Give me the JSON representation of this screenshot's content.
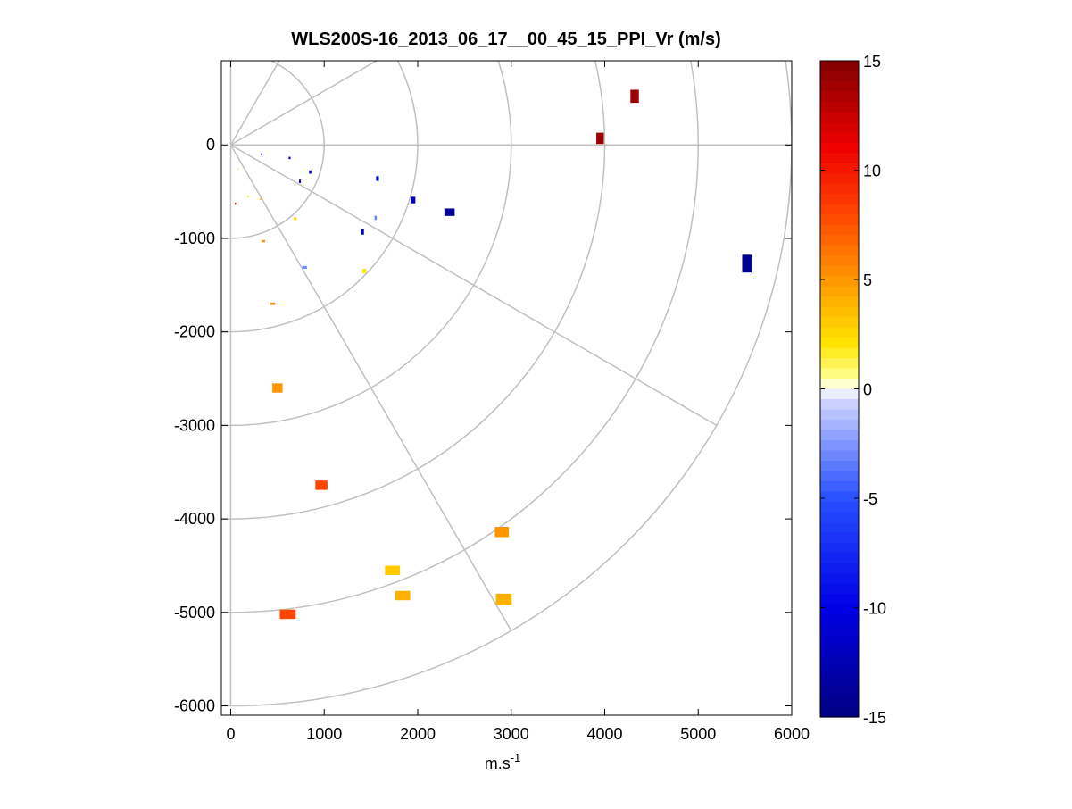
{
  "chart_data": {
    "type": "scatter",
    "title": "WLS200S-16_2013_06_17__00_45_15_PPI_Vr (m/s)",
    "xlabel_base": "m.s",
    "xlabel_sup": "-1",
    "ylabel": "",
    "xlim": [
      -100,
      6000
    ],
    "ylim": [
      -6100,
      900
    ],
    "x_ticks": [
      0,
      1000,
      2000,
      3000,
      4000,
      5000,
      6000
    ],
    "y_ticks": [
      0,
      -1000,
      -2000,
      -3000,
      -4000,
      -5000,
      -6000
    ],
    "x_tick_labels": [
      "0",
      "1000",
      "2000",
      "3000",
      "4000",
      "5000",
      "6000"
    ],
    "y_tick_labels": [
      "0",
      "-1000",
      "-2000",
      "-3000",
      "-4000",
      "-5000",
      "-6000"
    ],
    "polar_grid": {
      "origin": [
        0,
        0
      ],
      "ring_radii": [
        1000,
        2000,
        3000,
        4000,
        5000,
        6000
      ],
      "spoke_angles_deg": [
        0,
        30,
        60,
        90,
        -30,
        -60,
        -90
      ]
    },
    "colorbar": {
      "range": [
        -15,
        15
      ],
      "ticks": [
        15,
        10,
        5,
        0,
        -5,
        -10,
        -15
      ],
      "tick_labels": [
        "15",
        "10",
        "5",
        "0",
        "-5",
        "-10",
        "-15"
      ],
      "colormap": "blue-white-yellow-red"
    },
    "points": [
      {
        "x": 4320,
        "y": 520,
        "v": 14,
        "w": 90,
        "h": 140
      },
      {
        "x": 3950,
        "y": 70,
        "v": 14,
        "w": 80,
        "h": 120
      },
      {
        "x": 5520,
        "y": -1270,
        "v": -14,
        "w": 100,
        "h": 190
      },
      {
        "x": 2340,
        "y": -720,
        "v": -14,
        "w": 110,
        "h": 80
      },
      {
        "x": 1950,
        "y": -590,
        "v": -12,
        "w": 50,
        "h": 70
      },
      {
        "x": 1570,
        "y": -360,
        "v": -11,
        "w": 30,
        "h": 50
      },
      {
        "x": 1410,
        "y": -930,
        "v": -11,
        "w": 30,
        "h": 60
      },
      {
        "x": 1550,
        "y": -780,
        "v": -3,
        "w": 25,
        "h": 45
      },
      {
        "x": 850,
        "y": -290,
        "v": -11,
        "w": 25,
        "h": 35
      },
      {
        "x": 740,
        "y": -390,
        "v": -12,
        "w": 20,
        "h": 35
      },
      {
        "x": 630,
        "y": -140,
        "v": -12,
        "w": 20,
        "h": 25
      },
      {
        "x": 330,
        "y": -100,
        "v": -12,
        "w": 15,
        "h": 20
      },
      {
        "x": 790,
        "y": -1310,
        "v": -3,
        "w": 50,
        "h": 30
      },
      {
        "x": 1430,
        "y": -1350,
        "v": 2,
        "w": 40,
        "h": 50
      },
      {
        "x": 690,
        "y": -790,
        "v": 3,
        "w": 30,
        "h": 30
      },
      {
        "x": 350,
        "y": -1030,
        "v": 5,
        "w": 35,
        "h": 25
      },
      {
        "x": 450,
        "y": -1700,
        "v": 5,
        "w": 50,
        "h": 25
      },
      {
        "x": 190,
        "y": -550,
        "v": 2,
        "w": 15,
        "h": 20
      },
      {
        "x": 320,
        "y": -580,
        "v": 4,
        "w": 15,
        "h": 20
      },
      {
        "x": 50,
        "y": -630,
        "v": 12,
        "w": 15,
        "h": 20
      },
      {
        "x": 80,
        "y": -260,
        "v": 2,
        "w": 10,
        "h": 15
      },
      {
        "x": 500,
        "y": -2600,
        "v": 5,
        "w": 110,
        "h": 100
      },
      {
        "x": 970,
        "y": -3640,
        "v": 8,
        "w": 130,
        "h": 100
      },
      {
        "x": 2900,
        "y": -4140,
        "v": 5,
        "w": 150,
        "h": 110
      },
      {
        "x": 1730,
        "y": -4550,
        "v": 3,
        "w": 160,
        "h": 100
      },
      {
        "x": 1840,
        "y": -4820,
        "v": 4,
        "w": 160,
        "h": 100
      },
      {
        "x": 2920,
        "y": -4860,
        "v": 4,
        "w": 170,
        "h": 120
      },
      {
        "x": 610,
        "y": -5020,
        "v": 8,
        "w": 170,
        "h": 100
      }
    ]
  }
}
